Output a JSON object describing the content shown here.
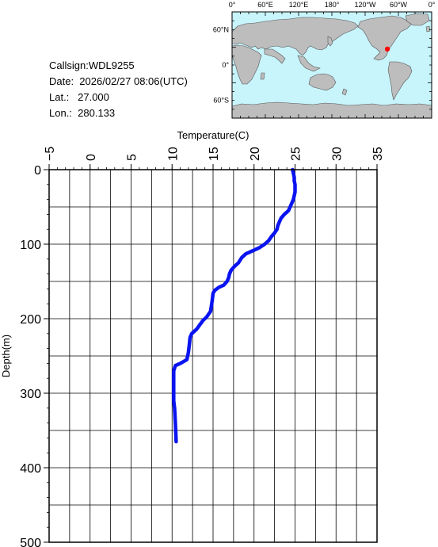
{
  "info": {
    "callsign": "Callsign:WDL9255",
    "date": "Date:  2026/02/27 08:06(UTC)",
    "lat": "Lat.:   27.000",
    "lon": "Lon.:  280.133"
  },
  "map": {
    "top_ticks": [
      "0°",
      "60°E",
      "120°E",
      "180°",
      "120°W",
      "60°W",
      "0°"
    ],
    "left_ticks": [
      "60°N",
      "0°",
      "60°S"
    ],
    "ocean_color": "#c8f4fc",
    "land_color": "#bdbdbd",
    "marker_color": "#ff0000",
    "marker_lat": 27.0,
    "marker_lon": 280.133
  },
  "chart_data": {
    "type": "line",
    "xlabel": "Temperature(C)",
    "ylabel": "Depth(m)",
    "xlim": [
      -5,
      35
    ],
    "ylim": [
      0,
      500
    ],
    "y_inverted": true,
    "x_ticks": [
      "−5",
      "0",
      "5",
      "10",
      "15",
      "20",
      "25",
      "30",
      "35"
    ],
    "y_ticks": [
      "0",
      "100",
      "200",
      "300",
      "400",
      "500"
    ],
    "grid": true,
    "line_color": "#0a14f0",
    "series": [
      {
        "points": [
          [
            24.7,
            0
          ],
          [
            24.8,
            5
          ],
          [
            24.9,
            10
          ],
          [
            24.9,
            15
          ],
          [
            25.0,
            20
          ],
          [
            25.0,
            25
          ],
          [
            25.0,
            30
          ],
          [
            24.9,
            35
          ],
          [
            24.8,
            40
          ],
          [
            24.6,
            45
          ],
          [
            24.4,
            50
          ],
          [
            24.2,
            55
          ],
          [
            23.7,
            60
          ],
          [
            23.3,
            65
          ],
          [
            23.1,
            70
          ],
          [
            22.9,
            75
          ],
          [
            22.8,
            80
          ],
          [
            22.5,
            85
          ],
          [
            22.1,
            90
          ],
          [
            21.8,
            95
          ],
          [
            21.3,
            100
          ],
          [
            20.6,
            105
          ],
          [
            19.6,
            110
          ],
          [
            19.0,
            113
          ],
          [
            18.5,
            118
          ],
          [
            18.1,
            125
          ],
          [
            17.6,
            130
          ],
          [
            17.2,
            135
          ],
          [
            17.0,
            140
          ],
          [
            16.9,
            145
          ],
          [
            16.7,
            150
          ],
          [
            16.3,
            155
          ],
          [
            15.7,
            158
          ],
          [
            15.2,
            162
          ],
          [
            15.0,
            166
          ],
          [
            14.9,
            175
          ],
          [
            14.7,
            190
          ],
          [
            14.2,
            198
          ],
          [
            13.8,
            202
          ],
          [
            13.4,
            208
          ],
          [
            13.0,
            214
          ],
          [
            12.4,
            220
          ],
          [
            12.2,
            225
          ],
          [
            12.1,
            235
          ],
          [
            12.0,
            245
          ],
          [
            11.8,
            255
          ],
          [
            11.0,
            260
          ],
          [
            10.4,
            263
          ],
          [
            10.2,
            270
          ],
          [
            10.2,
            290
          ],
          [
            10.2,
            310
          ],
          [
            10.3,
            320
          ],
          [
            10.4,
            340
          ],
          [
            10.5,
            365
          ]
        ]
      }
    ]
  }
}
